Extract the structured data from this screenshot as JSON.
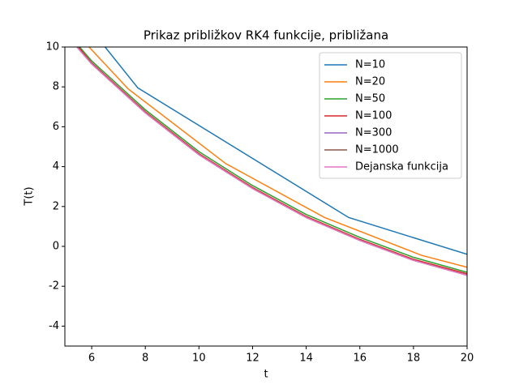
{
  "chart_data": {
    "type": "line",
    "title": "Prikaz približkov RK4 funkcije, približana",
    "xlabel": "t",
    "ylabel": "T(t)",
    "xlim": [
      5,
      20
    ],
    "ylim": [
      -5,
      10
    ],
    "xticks": [
      6,
      8,
      10,
      12,
      14,
      16,
      18,
      20
    ],
    "yticks": [
      -4,
      -2,
      0,
      2,
      4,
      6,
      8,
      10
    ],
    "legend": "upper right",
    "series": [
      {
        "name": "N=10",
        "color": "#1f77b4",
        "x": [
          6.5,
          7.72,
          15.58,
          20
        ],
        "values": [
          10,
          7.95,
          1.45,
          -0.4
        ]
      },
      {
        "name": "N=20",
        "color": "#ff7f0e",
        "x": [
          5.9,
          7.36,
          11.0,
          14.68,
          18.3,
          20
        ],
        "values": [
          10,
          7.9,
          4.15,
          1.45,
          -0.45,
          -1.05
        ]
      },
      {
        "name": "N=50",
        "color": "#2ca02c",
        "x": [
          5.55,
          6,
          8,
          10,
          12,
          14,
          16,
          18,
          20
        ],
        "values": [
          10,
          9.3,
          6.85,
          4.75,
          3.05,
          1.6,
          0.45,
          -0.55,
          -1.3
        ]
      },
      {
        "name": "N=100",
        "color": "#d62728",
        "x": [
          5.5,
          6,
          8,
          10,
          12,
          14,
          16,
          18,
          20
        ],
        "values": [
          10,
          9.2,
          6.75,
          4.65,
          2.95,
          1.5,
          0.35,
          -0.65,
          -1.38
        ]
      },
      {
        "name": "N=300",
        "color": "#9467bd",
        "x": [
          5.45,
          6,
          8,
          10,
          12,
          14,
          16,
          18,
          20
        ],
        "values": [
          10,
          9.15,
          6.7,
          4.6,
          2.9,
          1.45,
          0.3,
          -0.7,
          -1.45
        ]
      },
      {
        "name": "N=1000",
        "color": "#8c564b",
        "x": [
          5.45,
          6,
          8,
          10,
          12,
          14,
          16,
          18,
          20
        ],
        "values": [
          10,
          9.15,
          6.7,
          4.6,
          2.9,
          1.45,
          0.3,
          -0.7,
          -1.45
        ]
      },
      {
        "name": "Dejanska funkcija",
        "color": "#e377c2",
        "x": [
          5.45,
          6,
          8,
          10,
          12,
          14,
          16,
          18,
          20
        ],
        "values": [
          10,
          9.15,
          6.7,
          4.6,
          2.9,
          1.45,
          0.3,
          -0.7,
          -1.45
        ]
      }
    ]
  }
}
